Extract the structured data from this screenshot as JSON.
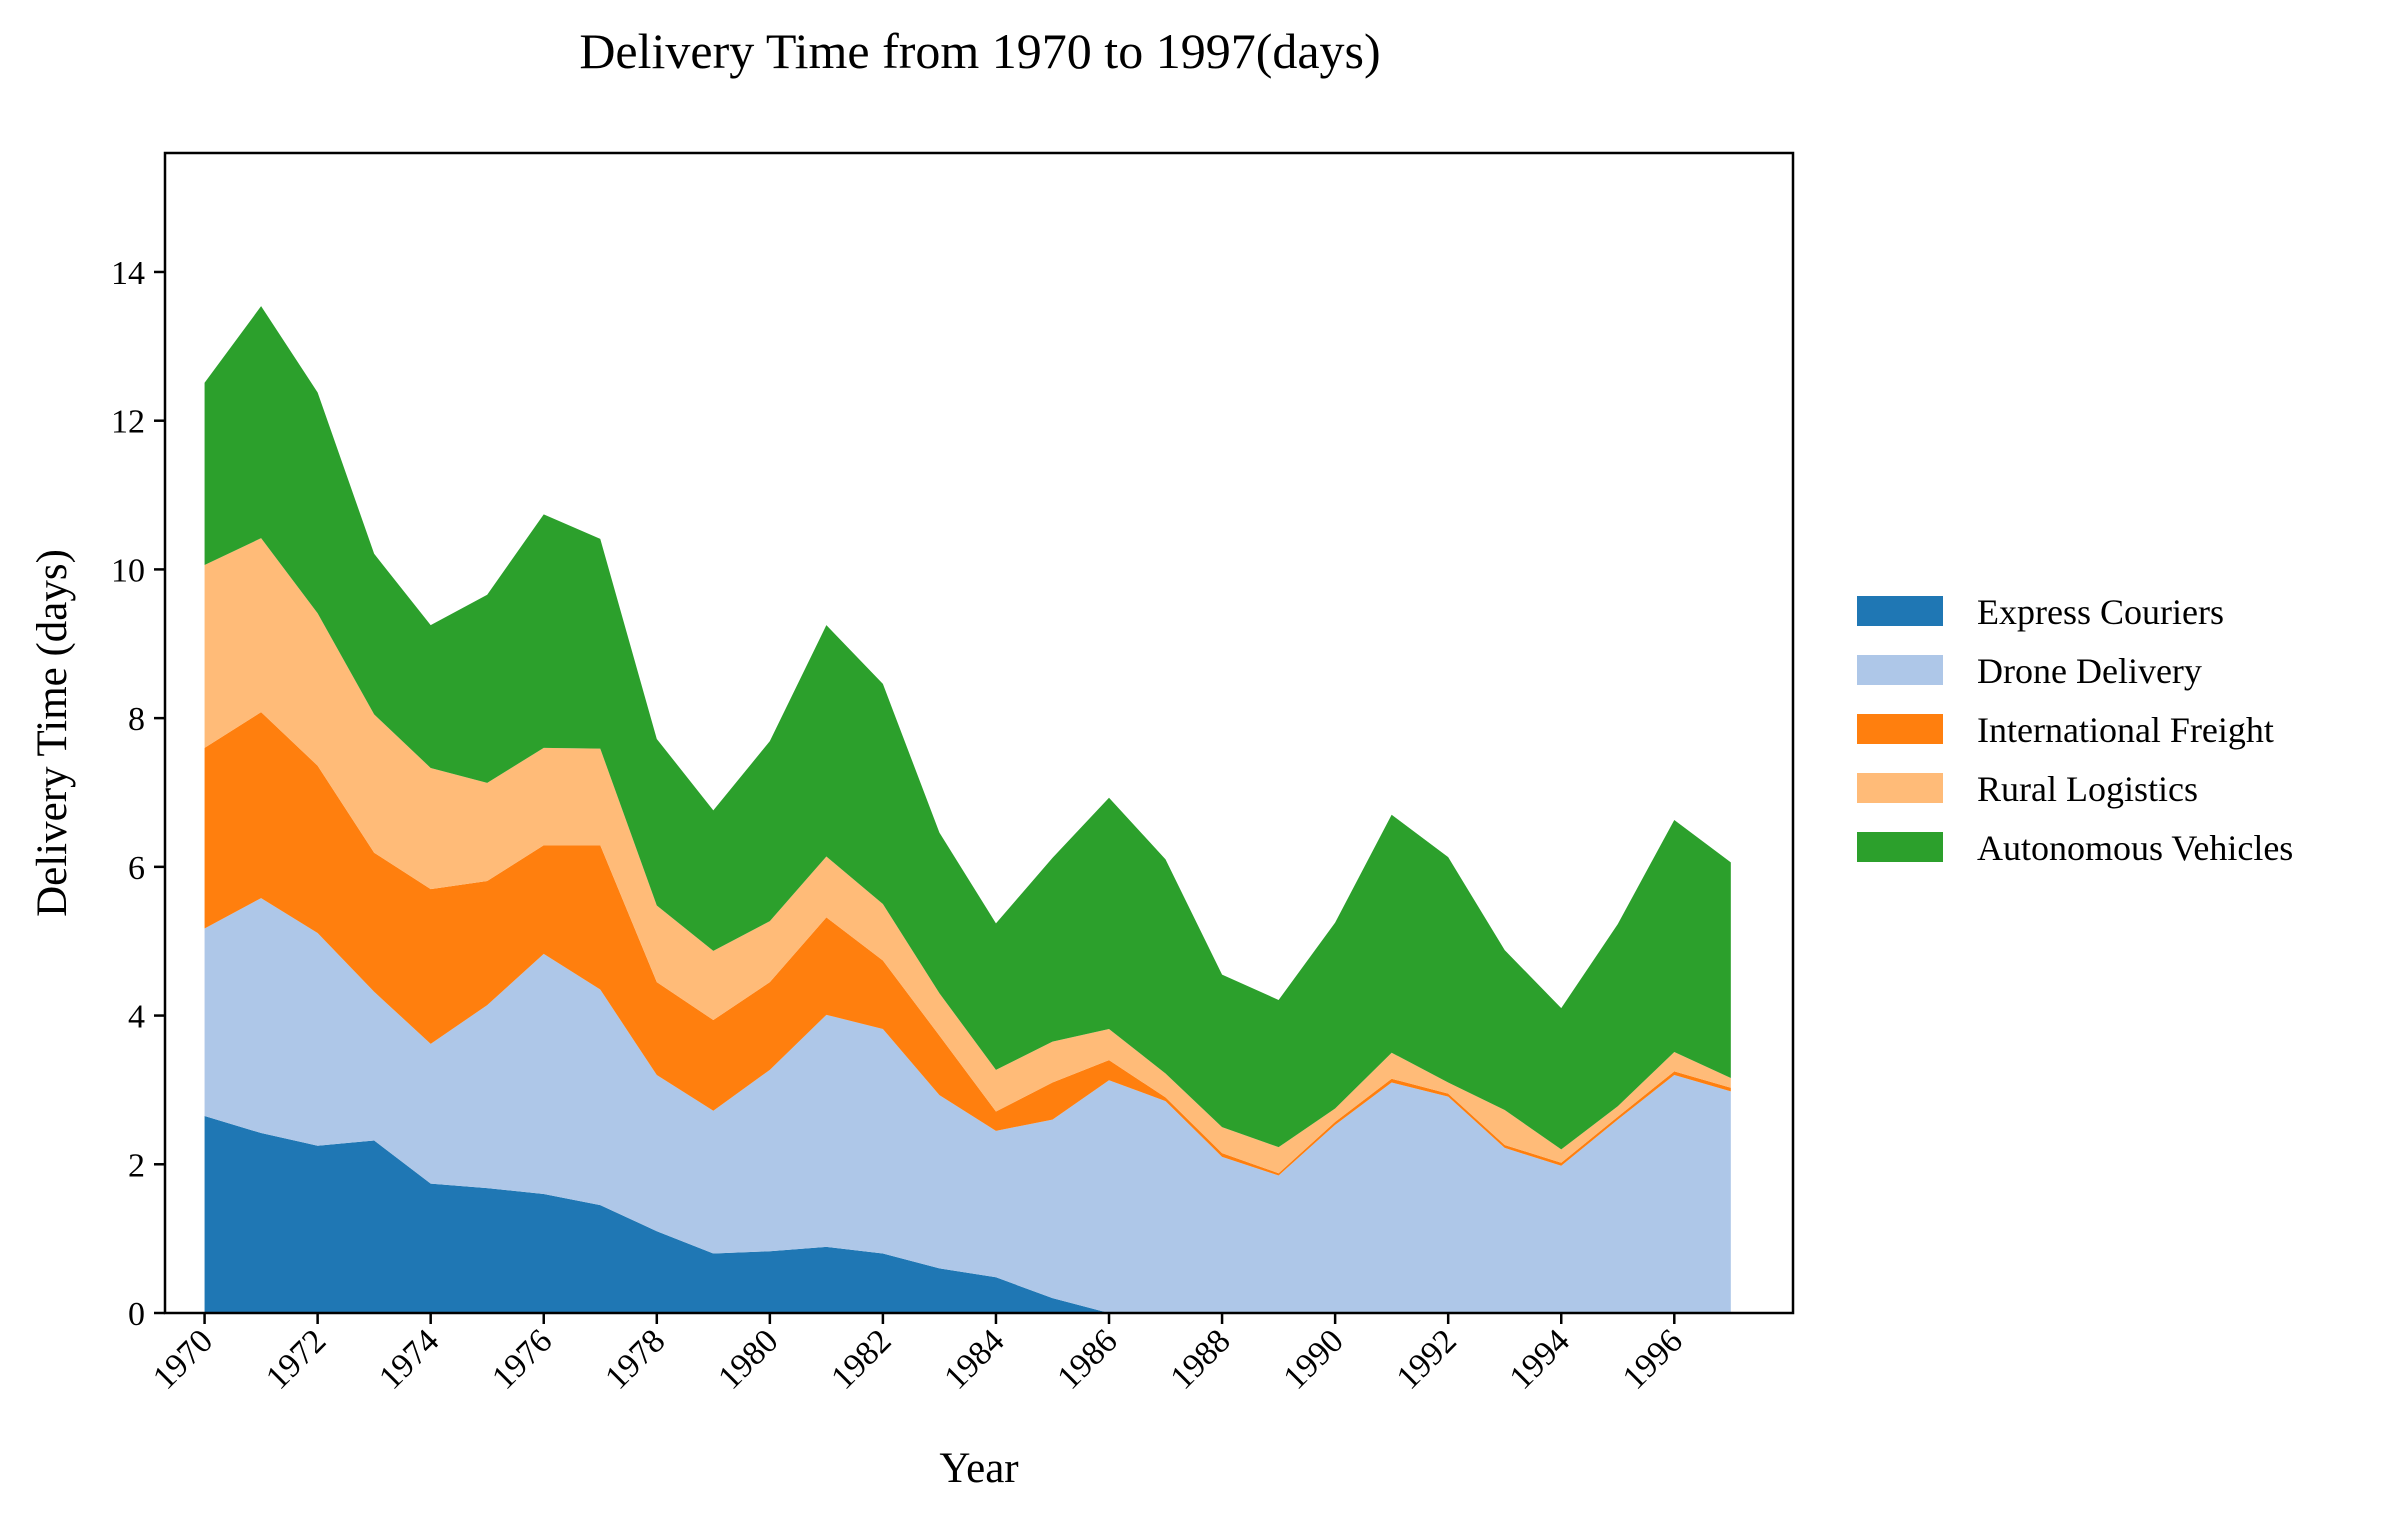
{
  "chart_data": {
    "type": "area",
    "stacked": true,
    "title": "Delivery Time from 1970 to 1997(days)",
    "xlabel": "Year",
    "ylabel": "Delivery Time (days)",
    "x": [
      1970,
      1971,
      1972,
      1973,
      1974,
      1975,
      1976,
      1977,
      1978,
      1979,
      1980,
      1981,
      1982,
      1983,
      1984,
      1985,
      1986,
      1987,
      1988,
      1989,
      1990,
      1991,
      1992,
      1993,
      1994,
      1995,
      1996,
      1997
    ],
    "xticks": [
      "1970",
      "1972",
      "1974",
      "1976",
      "1978",
      "1980",
      "1982",
      "1984",
      "1986",
      "1988",
      "1990",
      "1992",
      "1994",
      "1996"
    ],
    "yticks": [
      "0",
      "2",
      "4",
      "6",
      "8",
      "10",
      "12",
      "14"
    ],
    "ylim": [
      0,
      15.6
    ],
    "xlim": [
      1969.3,
      1998.1
    ],
    "grid": false,
    "legend_position": "right",
    "series": [
      {
        "name": "Express Couriers",
        "color": "#1f77b4",
        "values": [
          2.65,
          2.42,
          2.25,
          2.32,
          1.74,
          1.68,
          1.6,
          1.45,
          1.1,
          0.8,
          0.83,
          0.89,
          0.8,
          0.6,
          0.48,
          0.2,
          0.0,
          0.0,
          0.0,
          0.0,
          0.0,
          0.0,
          0.0,
          0.0,
          0.0,
          0.0,
          0.0,
          0.0
        ]
      },
      {
        "name": "Drone Delivery",
        "color": "#aec7e8",
        "values": [
          2.52,
          3.16,
          2.86,
          2.0,
          1.88,
          2.46,
          3.23,
          2.9,
          2.1,
          1.92,
          2.44,
          3.12,
          3.02,
          2.33,
          1.97,
          2.4,
          3.13,
          2.85,
          2.1,
          1.85,
          2.53,
          3.1,
          2.91,
          2.22,
          1.98,
          2.6,
          3.2,
          2.98
        ]
      },
      {
        "name": "International Freight",
        "color": "#ff7f0e",
        "values": [
          2.43,
          2.5,
          2.25,
          1.87,
          2.08,
          1.67,
          1.46,
          1.94,
          1.25,
          1.22,
          1.18,
          1.31,
          0.92,
          0.8,
          0.26,
          0.5,
          0.27,
          0.05,
          0.05,
          0.03,
          0.04,
          0.05,
          0.04,
          0.04,
          0.04,
          0.04,
          0.05,
          0.05
        ]
      },
      {
        "name": "Rural Logistics",
        "color": "#ffbb78",
        "values": [
          2.46,
          2.34,
          2.05,
          1.86,
          1.63,
          1.32,
          1.31,
          1.3,
          1.03,
          0.93,
          0.82,
          0.82,
          0.76,
          0.57,
          0.56,
          0.55,
          0.42,
          0.32,
          0.35,
          0.35,
          0.18,
          0.35,
          0.15,
          0.47,
          0.18,
          0.14,
          0.26,
          0.13
        ]
      },
      {
        "name": "Autonomous Vehicles",
        "color": "#2ca02c",
        "values": [
          2.45,
          3.12,
          2.97,
          2.16,
          1.92,
          2.53,
          3.14,
          2.82,
          2.24,
          1.89,
          2.42,
          3.11,
          2.96,
          2.16,
          1.97,
          2.47,
          3.11,
          2.88,
          2.05,
          1.98,
          2.5,
          3.2,
          3.03,
          2.15,
          1.9,
          2.45,
          3.12,
          2.9
        ]
      }
    ]
  }
}
